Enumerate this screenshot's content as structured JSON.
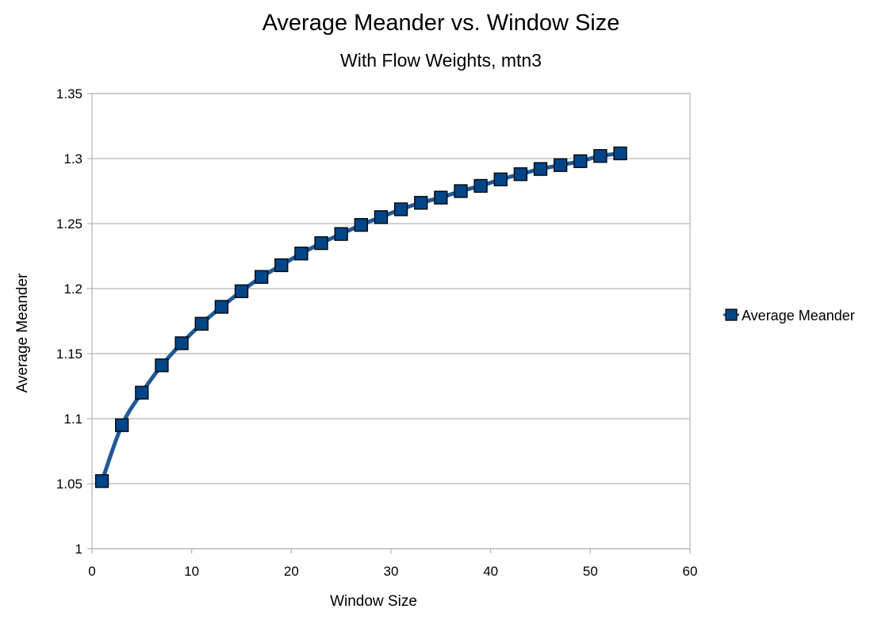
{
  "chart_data": {
    "type": "line",
    "title": "Average Meander vs. Window Size",
    "subtitle": "With Flow Weights, mtn3",
    "xlabel": "Window Size",
    "ylabel": "Average Meander",
    "xlim": [
      0,
      60
    ],
    "ylim": [
      1,
      1.35
    ],
    "xticks": [
      0,
      10,
      20,
      30,
      40,
      50,
      60
    ],
    "yticks": [
      1,
      1.05,
      1.1,
      1.15,
      1.2,
      1.25,
      1.3,
      1.35
    ],
    "xtick_labels": [
      "0",
      "10",
      "20",
      "30",
      "40",
      "50",
      "60"
    ],
    "ytick_labels": [
      "1",
      "1.05",
      "1.1",
      "1.15",
      "1.2",
      "1.25",
      "1.3",
      "1.35"
    ],
    "grid": "horizontal",
    "legend_position": "right",
    "line_color": "#1f5a96",
    "marker_color": "#004586",
    "series": [
      {
        "name": "Average Meander",
        "x": [
          1,
          3,
          5,
          7,
          9,
          11,
          13,
          15,
          17,
          19,
          21,
          23,
          25,
          27,
          29,
          31,
          33,
          35,
          37,
          39,
          41,
          43,
          45,
          47,
          49,
          51,
          53
        ],
        "y": [
          1.052,
          1.095,
          1.12,
          1.141,
          1.158,
          1.173,
          1.186,
          1.198,
          1.209,
          1.218,
          1.227,
          1.235,
          1.242,
          1.249,
          1.255,
          1.261,
          1.266,
          1.27,
          1.275,
          1.279,
          1.284,
          1.288,
          1.292,
          1.295,
          1.298,
          1.302,
          1.304
        ]
      }
    ]
  }
}
